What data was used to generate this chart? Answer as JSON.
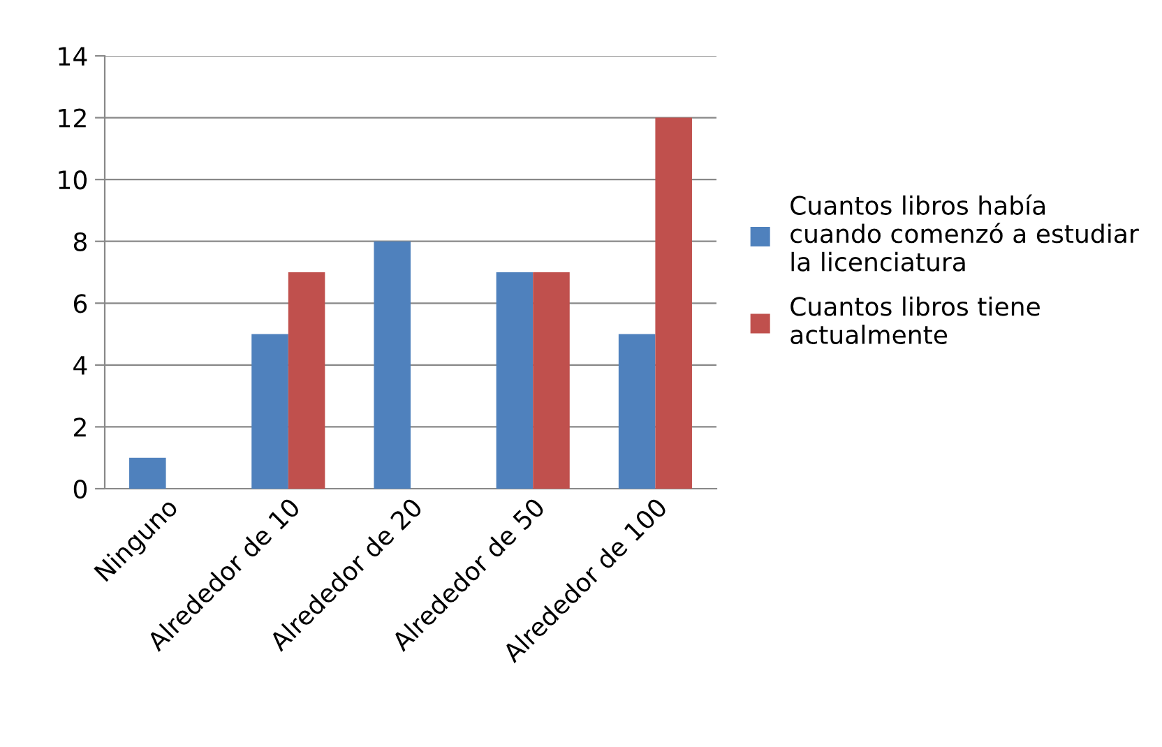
{
  "chart_data": {
    "type": "bar",
    "categories": [
      "Ninguno",
      "Alrededor de 10",
      "Alrededor de 20",
      "Alrededor de 50",
      "Alrededor de 100"
    ],
    "series": [
      {
        "name": "Cuantos libros había cuando comenzó a estudiar la licenciatura",
        "color": "#4f81bd",
        "values": [
          1,
          5,
          8,
          7,
          5
        ]
      },
      {
        "name": "Cuantos libros tiene actualmente",
        "color": "#c0504d",
        "values": [
          0,
          7,
          0,
          7,
          12
        ]
      }
    ],
    "ylim": [
      0,
      14
    ],
    "yticks": [
      0,
      2,
      4,
      6,
      8,
      10,
      12,
      14
    ],
    "grid": "y",
    "legend": "right"
  }
}
